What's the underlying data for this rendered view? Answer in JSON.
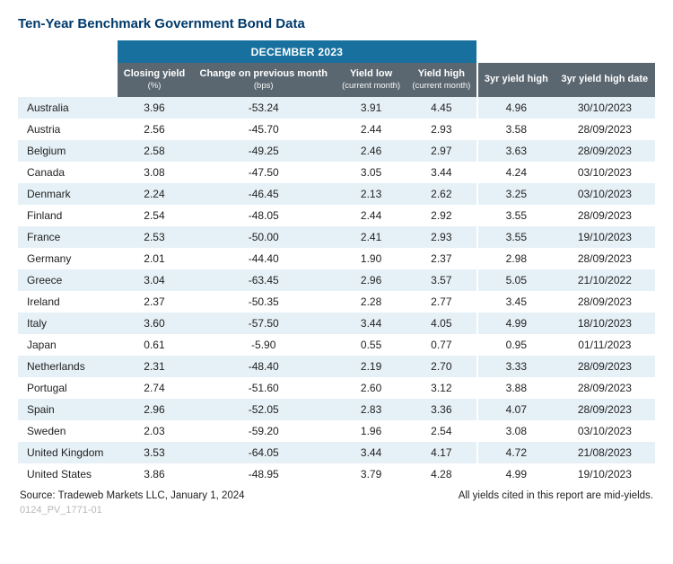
{
  "title": "Ten-Year Benchmark Government Bond Data",
  "period_label": "DECEMBER 2023",
  "colors": {
    "title": "#003a6b",
    "period_bg": "#17709e",
    "head_bg": "#5b6770",
    "row_even_bg": "#e6f1f7",
    "row_odd_bg": "#ffffff",
    "docid": "#b7b7b7"
  },
  "columns": [
    {
      "key": "country",
      "label": "",
      "sub": ""
    },
    {
      "key": "closing_yield",
      "label": "Closing yield",
      "sub": "(%)"
    },
    {
      "key": "change_bps",
      "label": "Change on previous month",
      "sub": "(bps)"
    },
    {
      "key": "yield_low",
      "label": "Yield low",
      "sub": "(current month)"
    },
    {
      "key": "yield_high",
      "label": "Yield high",
      "sub": "(current month)"
    },
    {
      "key": "yield3_high",
      "label": "3yr yield high",
      "sub": ""
    },
    {
      "key": "yield3_high_date",
      "label": "3yr yield high date",
      "sub": ""
    }
  ],
  "rows": [
    {
      "country": "Australia",
      "closing_yield": "3.96",
      "change_bps": "-53.24",
      "yield_low": "3.91",
      "yield_high": "4.45",
      "yield3_high": "4.96",
      "yield3_high_date": "30/10/2023"
    },
    {
      "country": "Austria",
      "closing_yield": "2.56",
      "change_bps": "-45.70",
      "yield_low": "2.44",
      "yield_high": "2.93",
      "yield3_high": "3.58",
      "yield3_high_date": "28/09/2023"
    },
    {
      "country": "Belgium",
      "closing_yield": "2.58",
      "change_bps": "-49.25",
      "yield_low": "2.46",
      "yield_high": "2.97",
      "yield3_high": "3.63",
      "yield3_high_date": "28/09/2023"
    },
    {
      "country": "Canada",
      "closing_yield": "3.08",
      "change_bps": "-47.50",
      "yield_low": "3.05",
      "yield_high": "3.44",
      "yield3_high": "4.24",
      "yield3_high_date": "03/10/2023"
    },
    {
      "country": "Denmark",
      "closing_yield": "2.24",
      "change_bps": "-46.45",
      "yield_low": "2.13",
      "yield_high": "2.62",
      "yield3_high": "3.25",
      "yield3_high_date": "03/10/2023"
    },
    {
      "country": "Finland",
      "closing_yield": "2.54",
      "change_bps": "-48.05",
      "yield_low": "2.44",
      "yield_high": "2.92",
      "yield3_high": "3.55",
      "yield3_high_date": "28/09/2023"
    },
    {
      "country": "France",
      "closing_yield": "2.53",
      "change_bps": "-50.00",
      "yield_low": "2.41",
      "yield_high": "2.93",
      "yield3_high": "3.55",
      "yield3_high_date": "19/10/2023"
    },
    {
      "country": "Germany",
      "closing_yield": "2.01",
      "change_bps": "-44.40",
      "yield_low": "1.90",
      "yield_high": "2.37",
      "yield3_high": "2.98",
      "yield3_high_date": "28/09/2023"
    },
    {
      "country": "Greece",
      "closing_yield": "3.04",
      "change_bps": "-63.45",
      "yield_low": "2.96",
      "yield_high": "3.57",
      "yield3_high": "5.05",
      "yield3_high_date": "21/10/2022"
    },
    {
      "country": "Ireland",
      "closing_yield": "2.37",
      "change_bps": "-50.35",
      "yield_low": "2.28",
      "yield_high": "2.77",
      "yield3_high": "3.45",
      "yield3_high_date": "28/09/2023"
    },
    {
      "country": "Italy",
      "closing_yield": "3.60",
      "change_bps": "-57.50",
      "yield_low": "3.44",
      "yield_high": "4.05",
      "yield3_high": "4.99",
      "yield3_high_date": "18/10/2023"
    },
    {
      "country": "Japan",
      "closing_yield": "0.61",
      "change_bps": "-5.90",
      "yield_low": "0.55",
      "yield_high": "0.77",
      "yield3_high": "0.95",
      "yield3_high_date": "01/11/2023"
    },
    {
      "country": "Netherlands",
      "closing_yield": "2.31",
      "change_bps": "-48.40",
      "yield_low": "2.19",
      "yield_high": "2.70",
      "yield3_high": "3.33",
      "yield3_high_date": "28/09/2023"
    },
    {
      "country": "Portugal",
      "closing_yield": "2.74",
      "change_bps": "-51.60",
      "yield_low": "2.60",
      "yield_high": "3.12",
      "yield3_high": "3.88",
      "yield3_high_date": "28/09/2023"
    },
    {
      "country": "Spain",
      "closing_yield": "2.96",
      "change_bps": "-52.05",
      "yield_low": "2.83",
      "yield_high": "3.36",
      "yield3_high": "4.07",
      "yield3_high_date": "28/09/2023"
    },
    {
      "country": "Sweden",
      "closing_yield": "2.03",
      "change_bps": "-59.20",
      "yield_low": "1.96",
      "yield_high": "2.54",
      "yield3_high": "3.08",
      "yield3_high_date": "03/10/2023"
    },
    {
      "country": "United Kingdom",
      "closing_yield": "3.53",
      "change_bps": "-64.05",
      "yield_low": "3.44",
      "yield_high": "4.17",
      "yield3_high": "4.72",
      "yield3_high_date": "21/08/2023"
    },
    {
      "country": "United States",
      "closing_yield": "3.86",
      "change_bps": "-48.95",
      "yield_low": "3.79",
      "yield_high": "4.28",
      "yield3_high": "4.99",
      "yield3_high_date": "19/10/2023"
    }
  ],
  "footer": {
    "source": "Source: Tradeweb Markets LLC, January 1, 2024",
    "note": "All yields cited in this report are mid-yields."
  },
  "doc_id": "0124_PV_1771-01"
}
